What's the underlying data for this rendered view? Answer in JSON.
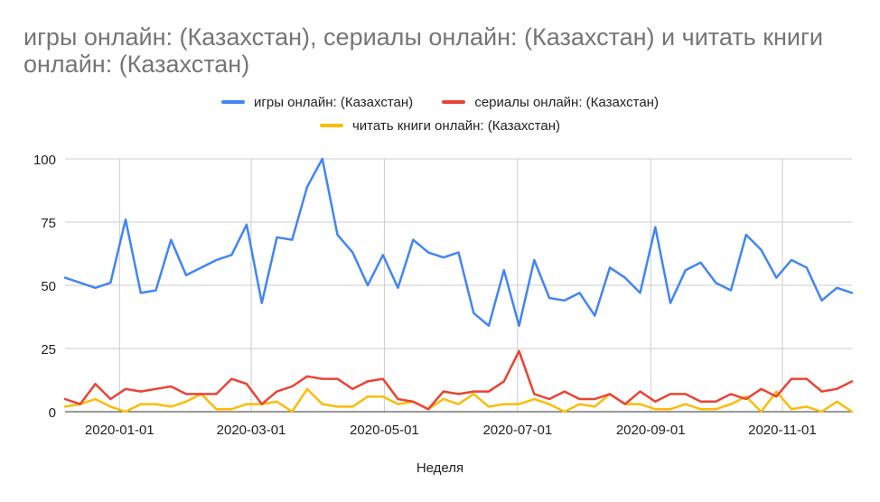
{
  "chart_data": {
    "type": "line",
    "title": "игры онлайн: (Казахстан), сериалы онлайн: (Казахстан) и читать книги онлайн: (Казахстан)",
    "xlabel": "Неделя",
    "ylabel": "",
    "ylim": [
      0,
      100
    ],
    "yticks": [
      "0",
      "25",
      "50",
      "75",
      "100"
    ],
    "xticks": [
      {
        "label": "2020-01-01",
        "index": 3.6
      },
      {
        "label": "2020-03-01",
        "index": 12.3
      },
      {
        "label": "2020-05-01",
        "index": 21.1
      },
      {
        "label": "2020-07-01",
        "index": 29.9
      },
      {
        "label": "2020-09-01",
        "index": 38.7
      },
      {
        "label": "2020-11-01",
        "index": 47.4
      }
    ],
    "grid": true,
    "legend_position": "top",
    "series": [
      {
        "name": "игры онлайн: (Казахстан)",
        "color": "#4285f4",
        "values": [
          53,
          51,
          49,
          51,
          76,
          47,
          48,
          68,
          54,
          57,
          60,
          62,
          74,
          43,
          69,
          68,
          89,
          100,
          70,
          63,
          50,
          62,
          49,
          68,
          63,
          61,
          63,
          39,
          34,
          56,
          34,
          60,
          45,
          44,
          47,
          38,
          57,
          53,
          47,
          73,
          43,
          56,
          59,
          51,
          48,
          70,
          64,
          53,
          60,
          57,
          44,
          49,
          47
        ]
      },
      {
        "name": "сериалы онлайн: (Казахстан)",
        "color": "#ea4335",
        "values": [
          5,
          3,
          11,
          5,
          9,
          8,
          9,
          10,
          7,
          7,
          7,
          13,
          11,
          3,
          8,
          10,
          14,
          13,
          13,
          9,
          12,
          13,
          5,
          4,
          1,
          8,
          7,
          8,
          8,
          12,
          24,
          7,
          5,
          8,
          5,
          5,
          7,
          3,
          8,
          4,
          7,
          7,
          4,
          4,
          7,
          5,
          9,
          6,
          13,
          13,
          8,
          9,
          12
        ]
      },
      {
        "name": "читать книги онлайн: (Казахстан)",
        "color": "#fbbc04",
        "values": [
          2,
          3,
          5,
          2,
          0,
          3,
          3,
          2,
          4,
          7,
          1,
          1,
          3,
          3,
          4,
          0,
          9,
          3,
          2,
          2,
          6,
          6,
          3,
          4,
          1,
          5,
          3,
          7,
          2,
          3,
          3,
          5,
          3,
          0,
          3,
          2,
          7,
          3,
          3,
          1,
          1,
          3,
          1,
          1,
          3,
          6,
          0,
          8,
          1,
          2,
          0,
          4,
          0
        ]
      }
    ]
  }
}
